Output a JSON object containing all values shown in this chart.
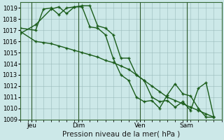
{
  "xlabel": "Pression niveau de la mer( hPa )",
  "ylim": [
    1009,
    1019.5
  ],
  "xlim": [
    0,
    26
  ],
  "yticks": [
    1009,
    1010,
    1011,
    1012,
    1013,
    1014,
    1015,
    1016,
    1017,
    1018,
    1019
  ],
  "xtick_positions": [
    1.5,
    7.5,
    15.5,
    21.5
  ],
  "xtick_labels": [
    "Jeu",
    "Dim",
    "Ven",
    "Sam"
  ],
  "vlines": [
    1.5,
    7.5,
    15.5,
    21.5
  ],
  "background_color": "#cce8e8",
  "grid_color": "#99bbbb",
  "line_color": "#1a5c1a",
  "line1_x": [
    0,
    2,
    4,
    5,
    6,
    7,
    8,
    9,
    10,
    11,
    12,
    13,
    14,
    15,
    16,
    17,
    18,
    19,
    20,
    21,
    22,
    23,
    24,
    25
  ],
  "line1_y": [
    1016.7,
    1017.5,
    1018.9,
    1019.1,
    1018.5,
    1019.1,
    1019.2,
    1019.2,
    1017.4,
    1017.2,
    1016.6,
    1014.5,
    1014.5,
    1013.0,
    1012.5,
    1011.0,
    1010.6,
    1010.7,
    1010.1,
    1010.6,
    1009.8,
    1011.8,
    1012.3,
    1009.2
  ],
  "line2_x": [
    0,
    2,
    3,
    4,
    5,
    6,
    7,
    8,
    9,
    10,
    11,
    12,
    13,
    14,
    15,
    16,
    17,
    18,
    19,
    20,
    21,
    22,
    23,
    24,
    25
  ],
  "line2_y": [
    1017.2,
    1017.0,
    1018.9,
    1019.0,
    1018.4,
    1019.0,
    1019.1,
    1019.1,
    1017.3,
    1017.2,
    1016.6,
    1014.5,
    1013.0,
    1012.5,
    1011.0,
    1010.6,
    1010.7,
    1010.0,
    1011.2,
    1012.2,
    1011.3,
    1011.1,
    1010.0,
    1009.2,
    1009.2
  ],
  "line3_x": [
    0,
    2,
    3,
    4,
    5,
    6,
    7,
    8,
    9,
    10,
    11,
    12,
    13,
    14,
    15,
    16,
    17,
    18,
    19,
    20,
    21,
    22,
    23,
    24,
    25
  ],
  "line3_y": [
    1016.9,
    1016.0,
    1015.9,
    1015.8,
    1015.6,
    1015.4,
    1015.2,
    1015.0,
    1014.8,
    1014.6,
    1014.3,
    1014.1,
    1013.8,
    1013.5,
    1013.0,
    1012.5,
    1012.0,
    1011.5,
    1011.0,
    1010.7,
    1010.4,
    1010.1,
    1009.8,
    1009.5,
    1009.2
  ]
}
